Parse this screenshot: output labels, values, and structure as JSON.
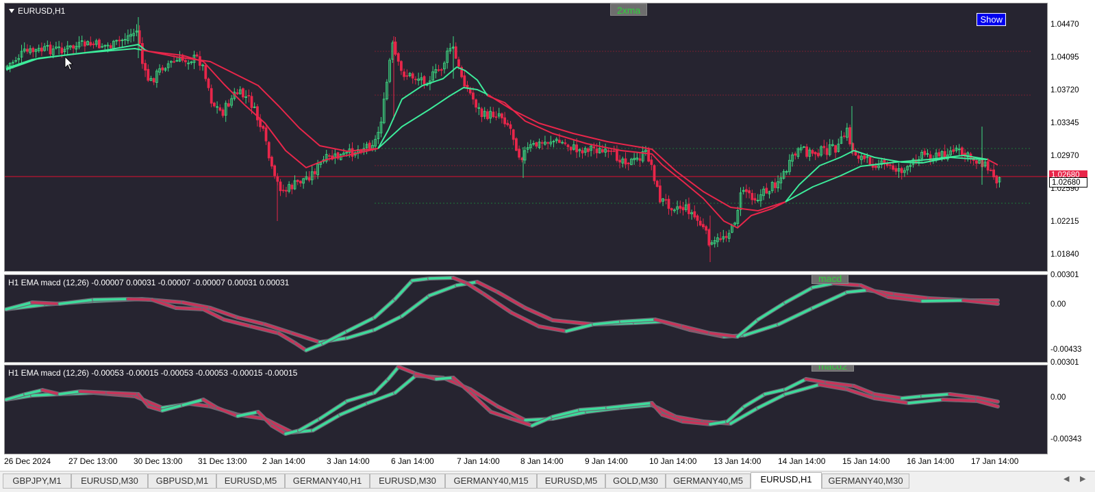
{
  "chart": {
    "symbol_label": "EURUSD,H1",
    "indicator_chip": "2xma",
    "show_button": "Show",
    "y_axis": [
      "1.04470",
      "1.04095",
      "1.03720",
      "1.03345",
      "1.02970",
      "1.02590",
      "1.02215",
      "1.01840"
    ],
    "bid_price": "1.02680",
    "ask_price": "1.02680",
    "colors": {
      "background": "#262430",
      "bull": "#3ddc84",
      "bear": "#e8264a",
      "ma_green": "#3dec9b",
      "ma_red": "#e8264a"
    }
  },
  "macd": {
    "label": "H1 EMA macd (12,26) -0.00007 0.00031 -0.00007 -0.00007 0.00031 0.00031",
    "chip": "macd",
    "y_axis": [
      "0.00301",
      "0.00",
      "-0.00433"
    ]
  },
  "macd2": {
    "label": "H1 EMA macd (12,26) -0.00053 -0.00015 -0.00053 -0.00053 -0.00015 -0.00015",
    "chip": "macd2",
    "y_axis": [
      "0.00301",
      "0.00",
      "-0.00343"
    ]
  },
  "time_axis": [
    "26 Dec 2024",
    "27 Dec 13:00",
    "30 Dec 13:00",
    "31 Dec 13:00",
    "2 Jan 14:00",
    "3 Jan 14:00",
    "6 Jan 14:00",
    "7 Jan 14:00",
    "8 Jan 14:00",
    "9 Jan 14:00",
    "10 Jan 14:00",
    "13 Jan 14:00",
    "14 Jan 14:00",
    "15 Jan 14:00",
    "16 Jan 14:00",
    "17 Jan 14:00"
  ],
  "tabs": [
    "GBPJPY,M1",
    "EURUSD,M30",
    "GBPUSD,M1",
    "EURUSD,M5",
    "GERMANY40,H1",
    "EURUSD,M30",
    "GERMANY40,M15",
    "EURUSD,M5",
    "GOLD,M30",
    "GERMANY40,M5",
    "EURUSD,H1",
    "GERMANY40,M30"
  ],
  "active_tab": 10
}
